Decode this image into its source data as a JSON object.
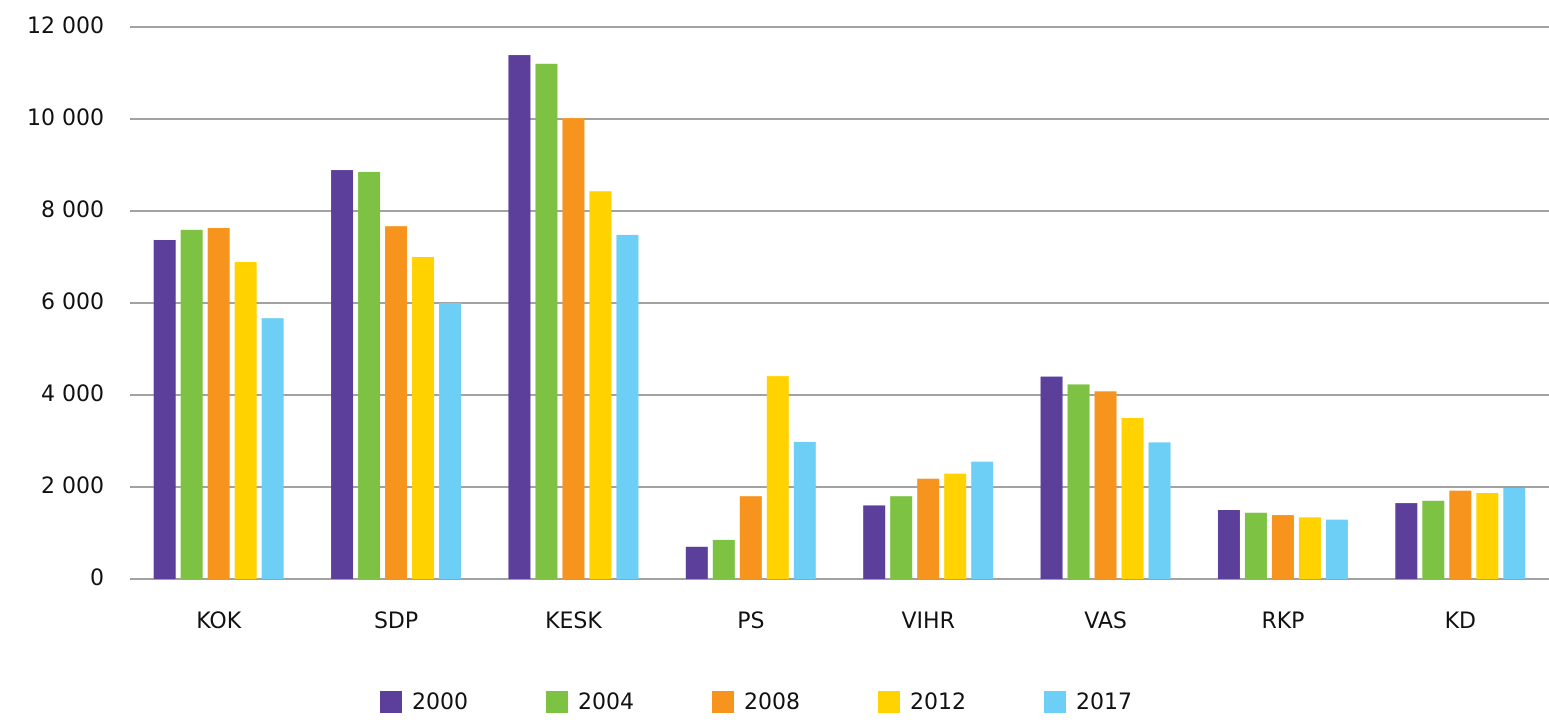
{
  "chart_data": {
    "type": "bar",
    "categories": [
      "KOK",
      "SDP",
      "KESK",
      "PS",
      "VIHR",
      "VAS",
      "RKP",
      "KD"
    ],
    "series": [
      {
        "name": "2000",
        "color": "#5b3f9b",
        "values": [
          7370,
          8890,
          11390,
          700,
          1600,
          4400,
          1500,
          1650
        ]
      },
      {
        "name": "2004",
        "color": "#7dc242",
        "values": [
          7590,
          8850,
          11200,
          850,
          1800,
          4230,
          1440,
          1700
        ]
      },
      {
        "name": "2008",
        "color": "#f7941d",
        "values": [
          7630,
          7670,
          10020,
          1800,
          2180,
          4080,
          1390,
          1920
        ]
      },
      {
        "name": "2012",
        "color": "#ffd200",
        "values": [
          6890,
          7000,
          8430,
          4410,
          2290,
          3500,
          1340,
          1870
        ]
      },
      {
        "name": "2017",
        "color": "#6dcff6",
        "values": [
          5670,
          6000,
          7480,
          2980,
          2550,
          2970,
          1290,
          1980
        ]
      }
    ],
    "ylim": [
      0,
      12000
    ],
    "yticks": [
      0,
      {
        "value": 2000,
        "label": "2 000"
      },
      {
        "value": 4000,
        "label": "4 000"
      },
      {
        "value": 6000,
        "label": "6 000"
      },
      {
        "value": 8000,
        "label": "8 000"
      },
      {
        "value": 10000,
        "label": "10 000"
      },
      {
        "value": 12000,
        "label": "12 000"
      }
    ],
    "grid": true,
    "legend": "bottom"
  }
}
